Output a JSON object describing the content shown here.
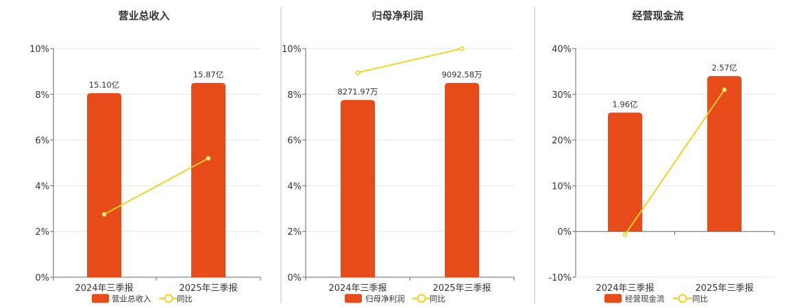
{
  "colors": {
    "bar": "#E84B1A",
    "line": "#F2D21B",
    "grid": "#E6E6E6",
    "axis": "#666666",
    "divider": "#BBBBBB",
    "text": "#333333"
  },
  "legend_line_label": "同比",
  "chart_data": [
    {
      "type": "bar",
      "title": "营业总收入",
      "categories": [
        "2024年三季报",
        "2025年三季报"
      ],
      "ylim": [
        0,
        10
      ],
      "yticks": [
        0,
        2,
        4,
        6,
        8,
        10
      ],
      "ytick_labels": [
        "0%",
        "2%",
        "4%",
        "6%",
        "8%",
        "10%"
      ],
      "series": [
        {
          "name": "营业总收入",
          "kind": "bar",
          "values": [
            8.05,
            8.5
          ],
          "labels": [
            "15.10亿",
            "15.87亿"
          ]
        },
        {
          "name": "同比",
          "kind": "line",
          "values": [
            2.75,
            5.2
          ]
        }
      ]
    },
    {
      "type": "bar",
      "title": "归母净利润",
      "categories": [
        "2024年三季报",
        "2025年三季报"
      ],
      "ylim": [
        0,
        10
      ],
      "yticks": [
        0,
        2,
        4,
        6,
        8,
        10
      ],
      "ytick_labels": [
        "0%",
        "2%",
        "4%",
        "6%",
        "8%",
        "10%"
      ],
      "series": [
        {
          "name": "归母净利润",
          "kind": "bar",
          "values": [
            7.75,
            8.5
          ],
          "labels": [
            "8271.97万",
            "9092.58万"
          ]
        },
        {
          "name": "同比",
          "kind": "line",
          "values": [
            8.95,
            10.0
          ]
        }
      ]
    },
    {
      "type": "bar",
      "title": "经营现金流",
      "categories": [
        "2024年三季报",
        "2025年三季报"
      ],
      "ylim": [
        -10,
        40
      ],
      "yticks": [
        -10,
        0,
        10,
        20,
        30,
        40
      ],
      "ytick_labels": [
        "-10%",
        "0%",
        "10%",
        "20%",
        "30%",
        "40%"
      ],
      "series": [
        {
          "name": "经营现金流",
          "kind": "bar",
          "values": [
            26.0,
            34.0
          ],
          "labels": [
            "1.96亿",
            "2.57亿"
          ]
        },
        {
          "name": "同比",
          "kind": "line",
          "values": [
            -0.7,
            31.0
          ]
        }
      ]
    }
  ]
}
